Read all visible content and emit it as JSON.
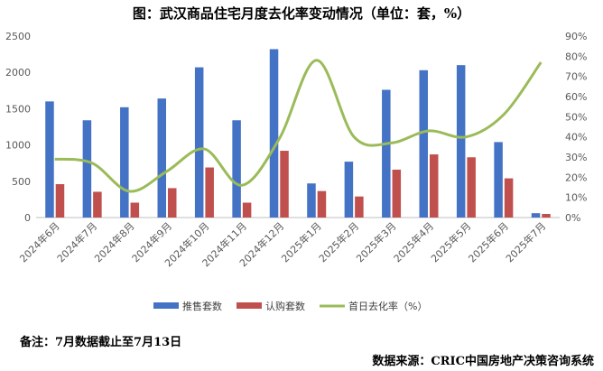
{
  "title": "图：武汉商品住宅月度去化率变动情况（单位：套，%）",
  "note": "备注：7月数据截止至7月13日",
  "source": "数据来源：CRIC中国房地产决策咨询系统",
  "colors": {
    "supply": "#4472C4",
    "sales": "#C0504D",
    "rate": "#9BBB59"
  },
  "chart_data": {
    "type": "bar",
    "categories": [
      "2024年6月",
      "2024年7月",
      "2024年8月",
      "2024年9月",
      "2024年10月",
      "2024年11月",
      "2024年12月",
      "2025年1月",
      "2025年2月",
      "2025年3月",
      "2025年4月",
      "2025年5月",
      "2025年6月",
      "2025年7月"
    ],
    "series": [
      {
        "name": "推售套数",
        "type": "bar",
        "axis": "left",
        "values": [
          1600,
          1340,
          1520,
          1640,
          2070,
          1340,
          2320,
          470,
          770,
          1760,
          2030,
          2100,
          1040,
          60
        ]
      },
      {
        "name": "认购套数",
        "type": "bar",
        "axis": "left",
        "values": [
          460,
          355,
          205,
          405,
          690,
          205,
          920,
          365,
          290,
          660,
          870,
          830,
          540,
          50
        ]
      },
      {
        "name": "首日去化率（%）",
        "type": "line",
        "axis": "right",
        "values": [
          29,
          27,
          13,
          23,
          34,
          16,
          39,
          78,
          40,
          37,
          43,
          40,
          51,
          77
        ]
      }
    ],
    "yticks_left": [
      "0",
      "500",
      "1000",
      "1500",
      "2000",
      "2500"
    ],
    "yticks_right": [
      "0%",
      "10%",
      "20%",
      "30%",
      "40%",
      "50%",
      "60%",
      "70%",
      "80%",
      "90%"
    ],
    "ylim_left": [
      0,
      2500
    ],
    "ylim_right": [
      0,
      90
    ],
    "legend_position": "bottom",
    "grid": false
  }
}
